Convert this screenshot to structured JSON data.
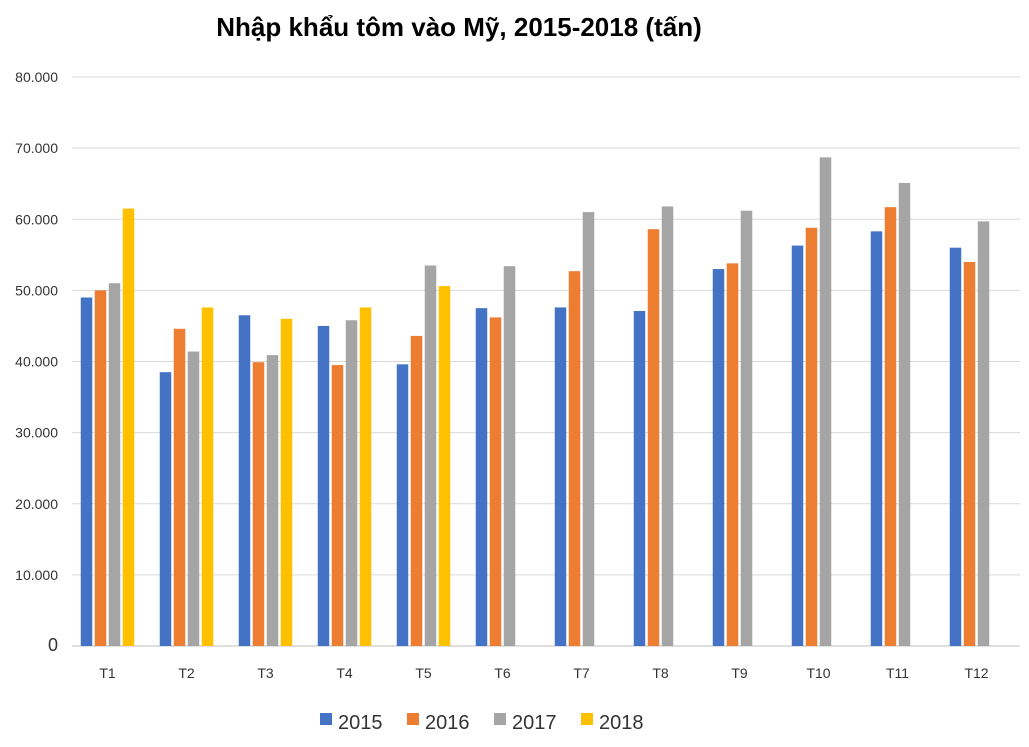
{
  "chart_data": {
    "type": "bar",
    "title": "Nhập khẩu tôm vào Mỹ, 2015-2018 (tấn)",
    "xlabel": "",
    "ylabel": "",
    "ylim": [
      0,
      80000
    ],
    "y_ticks": [
      0,
      10000,
      20000,
      30000,
      40000,
      50000,
      60000,
      70000,
      80000
    ],
    "y_tick_labels": [
      "0",
      "10.000",
      "20.000",
      "30.000",
      "40.000",
      "50.000",
      "60.000",
      "70.000",
      "80.000"
    ],
    "grid": true,
    "legend_position": "bottom",
    "categories": [
      "T1",
      "T2",
      "T3",
      "T4",
      "T5",
      "T6",
      "T7",
      "T8",
      "T9",
      "T10",
      "T11",
      "T12"
    ],
    "series": [
      {
        "name": "2015",
        "color": "#4472C4",
        "values": [
          49000,
          38500,
          46500,
          45000,
          39600,
          47500,
          47600,
          47100,
          53000,
          56300,
          58300,
          56000
        ]
      },
      {
        "name": "2016",
        "color": "#ED7D31",
        "values": [
          50000,
          44600,
          39900,
          39500,
          43600,
          46200,
          52700,
          58600,
          53800,
          58800,
          61700,
          54000
        ]
      },
      {
        "name": "2017",
        "color": "#A5A5A5",
        "values": [
          51000,
          41400,
          40900,
          45800,
          53500,
          53400,
          61000,
          61800,
          61200,
          68700,
          65100,
          59700
        ]
      },
      {
        "name": "2018",
        "color": "#FFC000",
        "values": [
          61500,
          47600,
          46000,
          47600,
          50600,
          null,
          null,
          null,
          null,
          null,
          null,
          null
        ]
      }
    ]
  }
}
